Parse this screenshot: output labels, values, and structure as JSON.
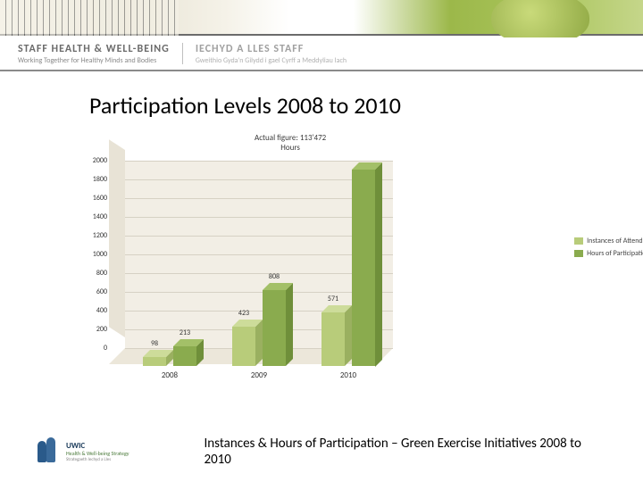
{
  "header": {
    "title_en": "STAFF HEALTH & WELL-BEING",
    "subtitle_en": "Working Together for Healthy Minds and Bodies",
    "title_cy": "IECHYD A LLES STAFF",
    "subtitle_cy": "Gweithio Gyda'n Gilydd i gael Cyrff a Meddyliau Iach"
  },
  "main_title": "Participation Levels 2008 to 2010",
  "chart": {
    "type": "3d-bar",
    "title_line1": "Actual figure: 113'472",
    "title_line2": "Hours",
    "categories": [
      "2008",
      "2009",
      "2010"
    ],
    "series": [
      {
        "name": "Instances of Attendance",
        "color_front": "#b8cc7a",
        "color_top": "#cddc9a",
        "color_side": "#9ab060",
        "values": [
          98,
          423,
          571
        ]
      },
      {
        "name": "Hours of Participation",
        "color_front": "#8aab4e",
        "color_top": "#a3c068",
        "color_side": "#6f8f3a",
        "values": [
          213,
          808,
          2100
        ]
      }
    ],
    "ylim": [
      0,
      2000
    ],
    "ytick_step": 200,
    "backwall_color": "#f2eee5",
    "sidewall_color": "#e8e3d6",
    "floor_color": "#ece7da",
    "grid_color": "#d6d1c4",
    "label_fontsize": 8,
    "title_fontsize": 9
  },
  "legend": {
    "items": [
      {
        "label": "Instances of Attendance",
        "color": "#b8cc7a"
      },
      {
        "label": "Hours of Participation",
        "color": "#8aab4e"
      }
    ]
  },
  "footer": {
    "logo_brand": "UWIC",
    "logo_line2": "Health & Well-being Strategy",
    "logo_line3": "Strategaeth Iechyd a Lles",
    "caption": "Instances & Hours of Participation – Green Exercise Initiatives 2008 to 2010"
  }
}
